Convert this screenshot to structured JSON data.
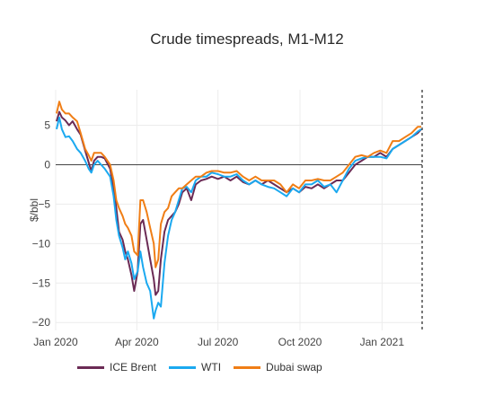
{
  "chart_data": {
    "type": "line",
    "title": "Crude timespreads, M1-M12",
    "xlabel": "",
    "ylabel": "$/bbl",
    "x_start": "2020-01-01",
    "x_tick_labels": [
      "Jan 2020",
      "Apr 2020",
      "Jul 2020",
      "Oct 2020",
      "Jan 2021"
    ],
    "x_tick_dates": [
      "2020-01-01",
      "2020-04-01",
      "2020-07-01",
      "2020-10-01",
      "2021-01-01"
    ],
    "xlim": [
      "2020-01-01",
      "2021-02-15"
    ],
    "y_tick_labels": [
      "−20",
      "−15",
      "−10",
      "−5",
      "0",
      "5"
    ],
    "y_ticks": [
      -20,
      -15,
      -10,
      -5,
      0,
      5
    ],
    "ylim": [
      -21,
      9.5
    ],
    "grid": true,
    "zero_line": true,
    "vline_date": "2021-02-15",
    "legend_position": "bottom",
    "series": [
      {
        "name": "ICE Brent",
        "color": "#6b2b55",
        "points": [
          [
            "2020-01-02",
            5.5
          ],
          [
            "2020-01-05",
            6.7
          ],
          [
            "2020-01-08",
            6.0
          ],
          [
            "2020-01-12",
            5.6
          ],
          [
            "2020-01-16",
            5.0
          ],
          [
            "2020-01-20",
            5.5
          ],
          [
            "2020-01-25",
            4.5
          ],
          [
            "2020-01-29",
            3.8
          ],
          [
            "2020-02-03",
            1.8
          ],
          [
            "2020-02-07",
            0.3
          ],
          [
            "2020-02-10",
            -0.8
          ],
          [
            "2020-02-13",
            0.5
          ],
          [
            "2020-02-17",
            1.0
          ],
          [
            "2020-02-21",
            1.0
          ],
          [
            "2020-02-25",
            0.8
          ],
          [
            "2020-03-02",
            -0.5
          ],
          [
            "2020-03-06",
            -3.0
          ],
          [
            "2020-03-09",
            -5.5
          ],
          [
            "2020-03-12",
            -8.5
          ],
          [
            "2020-03-16",
            -9.5
          ],
          [
            "2020-03-19",
            -11.0
          ],
          [
            "2020-03-22",
            -12.0
          ],
          [
            "2020-03-26",
            -14.0
          ],
          [
            "2020-03-29",
            -16.0
          ],
          [
            "2020-04-02",
            -13.5
          ],
          [
            "2020-04-05",
            -7.5
          ],
          [
            "2020-04-08",
            -7.0
          ],
          [
            "2020-04-12",
            -9.5
          ],
          [
            "2020-04-16",
            -12.0
          ],
          [
            "2020-04-20",
            -14.5
          ],
          [
            "2020-04-22",
            -16.5
          ],
          [
            "2020-04-25",
            -16.0
          ],
          [
            "2020-04-28",
            -12.0
          ],
          [
            "2020-05-02",
            -8.5
          ],
          [
            "2020-05-06",
            -7.0
          ],
          [
            "2020-05-10",
            -6.5
          ],
          [
            "2020-05-14",
            -6.0
          ],
          [
            "2020-05-18",
            -5.0
          ],
          [
            "2020-05-22",
            -3.5
          ],
          [
            "2020-05-27",
            -3.0
          ],
          [
            "2020-06-01",
            -4.5
          ],
          [
            "2020-06-06",
            -2.5
          ],
          [
            "2020-06-12",
            -2.0
          ],
          [
            "2020-06-18",
            -1.8
          ],
          [
            "2020-06-24",
            -1.5
          ],
          [
            "2020-07-01",
            -1.8
          ],
          [
            "2020-07-08",
            -1.5
          ],
          [
            "2020-07-15",
            -2.0
          ],
          [
            "2020-07-22",
            -1.5
          ],
          [
            "2020-07-29",
            -2.2
          ],
          [
            "2020-08-05",
            -2.5
          ],
          [
            "2020-08-12",
            -2.0
          ],
          [
            "2020-08-19",
            -2.5
          ],
          [
            "2020-08-26",
            -2.0
          ],
          [
            "2020-09-02",
            -2.5
          ],
          [
            "2020-09-09",
            -3.0
          ],
          [
            "2020-09-16",
            -3.5
          ],
          [
            "2020-09-23",
            -3.0
          ],
          [
            "2020-09-30",
            -3.5
          ],
          [
            "2020-10-07",
            -2.8
          ],
          [
            "2020-10-14",
            -3.0
          ],
          [
            "2020-10-21",
            -2.5
          ],
          [
            "2020-10-28",
            -3.0
          ],
          [
            "2020-11-04",
            -2.5
          ],
          [
            "2020-11-11",
            -2.0
          ],
          [
            "2020-11-18",
            -2.0
          ],
          [
            "2020-11-25",
            -1.0
          ],
          [
            "2020-12-02",
            0.0
          ],
          [
            "2020-12-09",
            0.5
          ],
          [
            "2020-12-16",
            1.0
          ],
          [
            "2020-12-23",
            1.0
          ],
          [
            "2020-12-30",
            1.5
          ],
          [
            "2021-01-06",
            1.0
          ],
          [
            "2021-01-13",
            2.0
          ],
          [
            "2021-01-20",
            2.5
          ],
          [
            "2021-01-27",
            3.0
          ],
          [
            "2021-02-03",
            3.5
          ],
          [
            "2021-02-10",
            4.0
          ],
          [
            "2021-02-14",
            4.5
          ]
        ]
      },
      {
        "name": "WTI",
        "color": "#1ba9f0",
        "points": [
          [
            "2020-01-02",
            4.5
          ],
          [
            "2020-01-05",
            6.0
          ],
          [
            "2020-01-08",
            4.5
          ],
          [
            "2020-01-12",
            3.5
          ],
          [
            "2020-01-16",
            3.6
          ],
          [
            "2020-01-20",
            3.0
          ],
          [
            "2020-01-25",
            2.0
          ],
          [
            "2020-01-29",
            1.5
          ],
          [
            "2020-02-03",
            0.5
          ],
          [
            "2020-02-07",
            -0.5
          ],
          [
            "2020-02-10",
            -1.0
          ],
          [
            "2020-02-13",
            0.0
          ],
          [
            "2020-02-17",
            0.5
          ],
          [
            "2020-02-21",
            0.0
          ],
          [
            "2020-02-25",
            -0.5
          ],
          [
            "2020-03-02",
            -1.5
          ],
          [
            "2020-03-06",
            -4.0
          ],
          [
            "2020-03-09",
            -7.0
          ],
          [
            "2020-03-12",
            -9.0
          ],
          [
            "2020-03-16",
            -10.5
          ],
          [
            "2020-03-19",
            -12.0
          ],
          [
            "2020-03-22",
            -11.0
          ],
          [
            "2020-03-26",
            -12.5
          ],
          [
            "2020-03-29",
            -14.5
          ],
          [
            "2020-04-02",
            -13.5
          ],
          [
            "2020-04-05",
            -11.0
          ],
          [
            "2020-04-08",
            -13.0
          ],
          [
            "2020-04-12",
            -15.0
          ],
          [
            "2020-04-16",
            -16.0
          ],
          [
            "2020-04-20",
            -19.5
          ],
          [
            "2020-04-22",
            -18.5
          ],
          [
            "2020-04-25",
            -17.5
          ],
          [
            "2020-04-28",
            -18.0
          ],
          [
            "2020-05-02",
            -12.5
          ],
          [
            "2020-05-06",
            -9.0
          ],
          [
            "2020-05-10",
            -7.0
          ],
          [
            "2020-05-14",
            -6.0
          ],
          [
            "2020-05-18",
            -4.5
          ],
          [
            "2020-05-22",
            -3.0
          ],
          [
            "2020-05-27",
            -2.8
          ],
          [
            "2020-06-01",
            -3.5
          ],
          [
            "2020-06-06",
            -2.0
          ],
          [
            "2020-06-12",
            -1.5
          ],
          [
            "2020-06-18",
            -1.5
          ],
          [
            "2020-06-24",
            -1.0
          ],
          [
            "2020-07-01",
            -1.2
          ],
          [
            "2020-07-08",
            -1.5
          ],
          [
            "2020-07-15",
            -1.5
          ],
          [
            "2020-07-22",
            -1.2
          ],
          [
            "2020-07-29",
            -2.0
          ],
          [
            "2020-08-05",
            -2.5
          ],
          [
            "2020-08-12",
            -2.0
          ],
          [
            "2020-08-19",
            -2.5
          ],
          [
            "2020-08-26",
            -2.8
          ],
          [
            "2020-09-02",
            -3.0
          ],
          [
            "2020-09-09",
            -3.5
          ],
          [
            "2020-09-16",
            -4.0
          ],
          [
            "2020-09-23",
            -3.0
          ],
          [
            "2020-09-30",
            -3.5
          ],
          [
            "2020-10-07",
            -2.5
          ],
          [
            "2020-10-14",
            -2.5
          ],
          [
            "2020-10-21",
            -2.0
          ],
          [
            "2020-10-28",
            -2.8
          ],
          [
            "2020-11-04",
            -2.5
          ],
          [
            "2020-11-11",
            -3.5
          ],
          [
            "2020-11-18",
            -2.0
          ],
          [
            "2020-11-25",
            -0.5
          ],
          [
            "2020-12-02",
            0.5
          ],
          [
            "2020-12-09",
            0.8
          ],
          [
            "2020-12-16",
            1.0
          ],
          [
            "2020-12-23",
            1.0
          ],
          [
            "2020-12-30",
            1.0
          ],
          [
            "2021-01-06",
            0.8
          ],
          [
            "2021-01-13",
            2.0
          ],
          [
            "2021-01-20",
            2.5
          ],
          [
            "2021-01-27",
            3.0
          ],
          [
            "2021-02-03",
            3.5
          ],
          [
            "2021-02-10",
            4.2
          ],
          [
            "2021-02-14",
            4.5
          ]
        ]
      },
      {
        "name": "Dubai swap",
        "color": "#f07e16",
        "points": [
          [
            "2020-01-02",
            6.5
          ],
          [
            "2020-01-05",
            8.0
          ],
          [
            "2020-01-08",
            7.0
          ],
          [
            "2020-01-12",
            6.5
          ],
          [
            "2020-01-16",
            6.5
          ],
          [
            "2020-01-20",
            6.0
          ],
          [
            "2020-01-25",
            5.5
          ],
          [
            "2020-01-29",
            4.0
          ],
          [
            "2020-02-03",
            2.0
          ],
          [
            "2020-02-07",
            1.2
          ],
          [
            "2020-02-10",
            0.5
          ],
          [
            "2020-02-13",
            1.5
          ],
          [
            "2020-02-17",
            1.5
          ],
          [
            "2020-02-21",
            1.5
          ],
          [
            "2020-02-25",
            1.0
          ],
          [
            "2020-03-02",
            0.0
          ],
          [
            "2020-03-06",
            -2.0
          ],
          [
            "2020-03-09",
            -4.5
          ],
          [
            "2020-03-12",
            -5.5
          ],
          [
            "2020-03-16",
            -6.5
          ],
          [
            "2020-03-19",
            -7.5
          ],
          [
            "2020-03-22",
            -8.0
          ],
          [
            "2020-03-26",
            -9.0
          ],
          [
            "2020-03-29",
            -11.0
          ],
          [
            "2020-04-02",
            -11.5
          ],
          [
            "2020-04-05",
            -4.5
          ],
          [
            "2020-04-08",
            -4.5
          ],
          [
            "2020-04-12",
            -6.0
          ],
          [
            "2020-04-16",
            -8.0
          ],
          [
            "2020-04-20",
            -10.0
          ],
          [
            "2020-04-22",
            -13.0
          ],
          [
            "2020-04-25",
            -12.0
          ],
          [
            "2020-04-28",
            -7.5
          ],
          [
            "2020-05-02",
            -6.0
          ],
          [
            "2020-05-06",
            -5.5
          ],
          [
            "2020-05-10",
            -4.0
          ],
          [
            "2020-05-14",
            -3.5
          ],
          [
            "2020-05-18",
            -3.0
          ],
          [
            "2020-05-22",
            -3.0
          ],
          [
            "2020-05-27",
            -2.5
          ],
          [
            "2020-06-01",
            -2.0
          ],
          [
            "2020-06-06",
            -1.5
          ],
          [
            "2020-06-12",
            -1.5
          ],
          [
            "2020-06-18",
            -1.0
          ],
          [
            "2020-06-24",
            -0.8
          ],
          [
            "2020-07-01",
            -0.8
          ],
          [
            "2020-07-08",
            -1.0
          ],
          [
            "2020-07-15",
            -1.0
          ],
          [
            "2020-07-22",
            -0.8
          ],
          [
            "2020-07-29",
            -1.5
          ],
          [
            "2020-08-05",
            -2.0
          ],
          [
            "2020-08-12",
            -1.5
          ],
          [
            "2020-08-19",
            -2.0
          ],
          [
            "2020-08-26",
            -2.0
          ],
          [
            "2020-09-02",
            -2.0
          ],
          [
            "2020-09-09",
            -2.5
          ],
          [
            "2020-09-16",
            -3.5
          ],
          [
            "2020-09-23",
            -2.5
          ],
          [
            "2020-09-30",
            -3.0
          ],
          [
            "2020-10-07",
            -2.0
          ],
          [
            "2020-10-14",
            -2.0
          ],
          [
            "2020-10-21",
            -1.8
          ],
          [
            "2020-10-28",
            -2.0
          ],
          [
            "2020-11-04",
            -2.0
          ],
          [
            "2020-11-11",
            -1.5
          ],
          [
            "2020-11-18",
            -1.0
          ],
          [
            "2020-11-25",
            0.0
          ],
          [
            "2020-12-02",
            1.0
          ],
          [
            "2020-12-09",
            1.2
          ],
          [
            "2020-12-16",
            1.0
          ],
          [
            "2020-12-23",
            1.5
          ],
          [
            "2020-12-30",
            1.8
          ],
          [
            "2021-01-06",
            1.5
          ],
          [
            "2021-01-13",
            3.0
          ],
          [
            "2021-01-20",
            3.0
          ],
          [
            "2021-01-27",
            3.5
          ],
          [
            "2021-02-03",
            4.0
          ],
          [
            "2021-02-10",
            4.8
          ],
          [
            "2021-02-14",
            4.8
          ]
        ]
      }
    ]
  }
}
